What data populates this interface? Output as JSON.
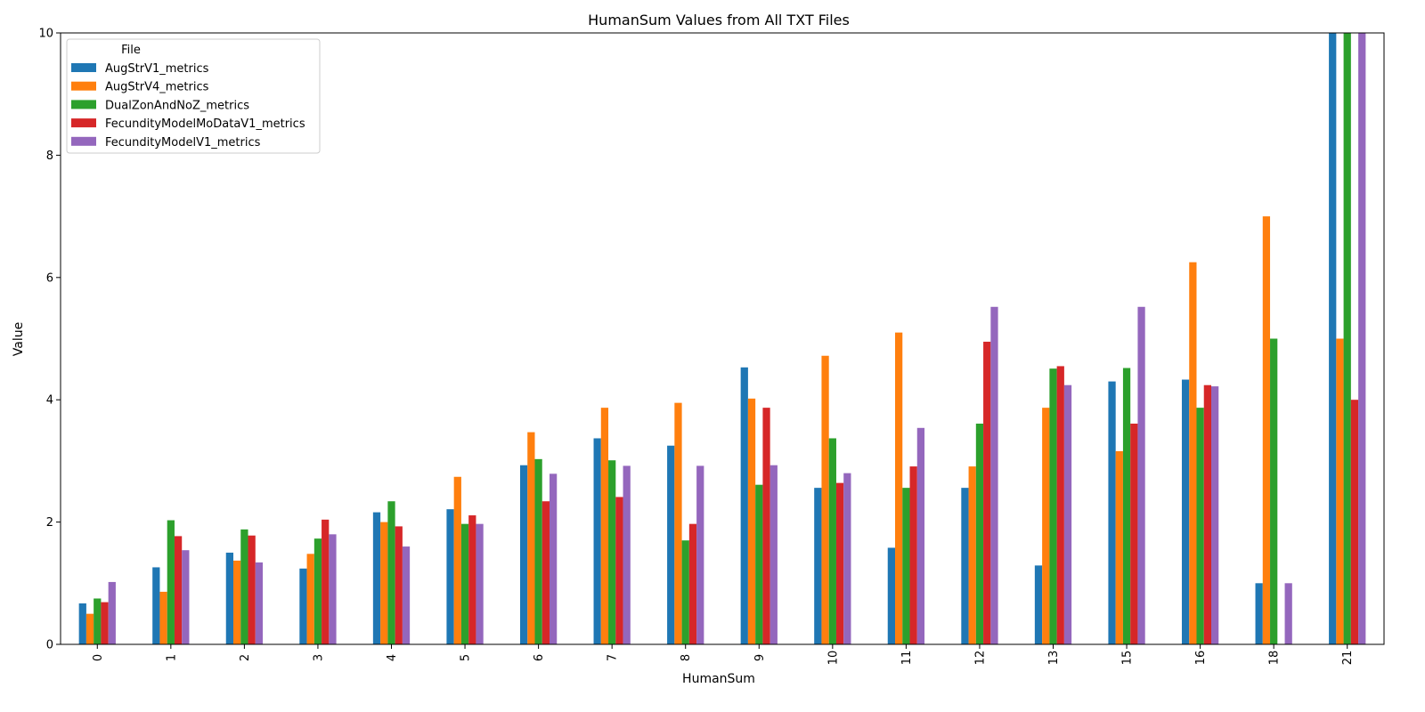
{
  "chart_data": {
    "type": "bar",
    "title": "HumanSum Values from All TXT Files",
    "xlabel": "HumanSum",
    "ylabel": "Value",
    "ylim": [
      0,
      10
    ],
    "yticks": [
      0,
      2,
      4,
      6,
      8,
      10
    ],
    "grid": false,
    "legend": {
      "title": "File",
      "placement": "top-left"
    },
    "categories": [
      "0",
      "1",
      "2",
      "3",
      "4",
      "5",
      "6",
      "7",
      "8",
      "9",
      "10",
      "11",
      "12",
      "13",
      "15",
      "16",
      "18",
      "21"
    ],
    "series": [
      {
        "name": "AugStrV1_metrics",
        "color": "#1f77b4",
        "values": [
          0.67,
          1.26,
          1.5,
          1.24,
          2.16,
          2.21,
          2.93,
          3.37,
          3.25,
          4.53,
          2.56,
          1.58,
          2.56,
          1.29,
          4.3,
          4.33,
          1.0,
          10.5
        ]
      },
      {
        "name": "AugStrV4_metrics",
        "color": "#ff7f0e",
        "values": [
          0.5,
          0.86,
          1.37,
          1.48,
          2.0,
          2.74,
          3.47,
          3.87,
          3.95,
          4.02,
          4.72,
          5.1,
          2.91,
          3.87,
          3.16,
          6.25,
          7.0,
          5.0
        ]
      },
      {
        "name": "DualZonAndNoZ_metrics",
        "color": "#2ca02c",
        "values": [
          0.75,
          2.03,
          1.88,
          1.73,
          2.34,
          1.97,
          3.03,
          3.01,
          1.7,
          2.61,
          3.37,
          2.56,
          3.61,
          4.51,
          4.52,
          3.87,
          5.0,
          10.5
        ]
      },
      {
        "name": "FecundityModelMoDataV1_metrics",
        "color": "#d62728",
        "values": [
          0.69,
          1.77,
          1.78,
          2.04,
          1.93,
          2.11,
          2.34,
          2.41,
          1.97,
          3.87,
          2.64,
          2.91,
          4.95,
          4.55,
          3.61,
          4.24,
          null,
          4.0
        ]
      },
      {
        "name": "FecundityModelV1_metrics",
        "color": "#9467bd",
        "values": [
          1.02,
          1.54,
          1.34,
          1.8,
          1.6,
          1.97,
          2.79,
          2.92,
          2.92,
          2.93,
          2.8,
          3.54,
          5.52,
          4.24,
          5.52,
          4.22,
          1.0,
          10.5
        ]
      }
    ]
  }
}
